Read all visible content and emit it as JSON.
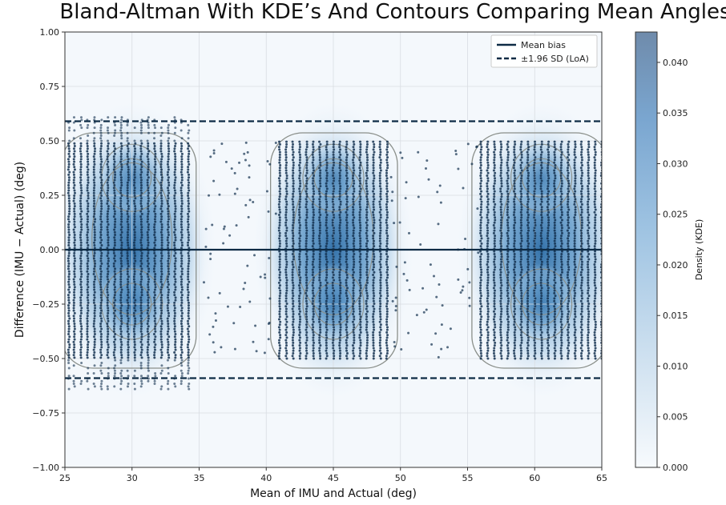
{
  "chart_data": {
    "type": "scatter",
    "title": "Bland-Altman With KDE’s And Contours Comparing Mean Angles",
    "xlabel": "Mean of IMU and Actual (deg)",
    "ylabel": "Difference (IMU − Actual) (deg)",
    "xlim": [
      25,
      65
    ],
    "ylim": [
      -1.0,
      1.0
    ],
    "x_ticks": [
      "25",
      "30",
      "35",
      "40",
      "45",
      "50",
      "55",
      "60",
      "65"
    ],
    "y_ticks": [
      "−1.00",
      "−0.75",
      "−0.50",
      "−0.25",
      "0.00",
      "0.25",
      "0.50",
      "0.75",
      "1.00"
    ],
    "grid": true,
    "mean_bias": 0.0,
    "loa_upper": 0.59,
    "loa_lower": -0.59,
    "legend": {
      "position": "top-right",
      "entries": [
        {
          "label": "Mean bias",
          "style": "solid"
        },
        {
          "label": "±1.96 SD (LoA)",
          "style": "dashed"
        }
      ]
    },
    "colorbar": {
      "label": "Density (KDE)",
      "range": [
        0.0,
        0.043
      ],
      "ticks": [
        "0.000",
        "0.005",
        "0.010",
        "0.015",
        "0.020",
        "0.025",
        "0.030",
        "0.035",
        "0.040"
      ]
    },
    "clusters": [
      {
        "x_range": [
          25.2,
          34.3
        ],
        "y_range": [
          -0.7,
          0.71
        ],
        "dense_y_range": [
          -0.5,
          0.5
        ],
        "center_x": 30.0
      },
      {
        "x_range": [
          40.8,
          49.3
        ],
        "y_range": [
          -0.5,
          0.5
        ],
        "dense_y_range": [
          -0.5,
          0.5
        ],
        "center_x": 45.0
      },
      {
        "x_range": [
          55.8,
          65.0
        ],
        "y_range": [
          -0.5,
          0.5
        ],
        "dense_y_range": [
          -0.5,
          0.5
        ],
        "center_x": 60.5
      }
    ],
    "point_columns_x": [
      25.3,
      25.7,
      26.2,
      26.7,
      27.2,
      27.7,
      28.2,
      28.7,
      29.2,
      29.7,
      30.2,
      30.7,
      31.2,
      31.7,
      32.2,
      32.7,
      33.2,
      33.7,
      34.2,
      41.0,
      41.5,
      42.0,
      42.5,
      43.0,
      43.5,
      44.0,
      44.5,
      45.0,
      45.5,
      46.0,
      46.5,
      47.0,
      47.5,
      48.0,
      48.5,
      49.0,
      56.0,
      56.5,
      57.0,
      57.5,
      58.0,
      58.5,
      59.0,
      59.5,
      60.0,
      60.5,
      61.0,
      61.5,
      62.0,
      62.5,
      63.0,
      63.5,
      64.0,
      64.5,
      65.0
    ],
    "colors": {
      "points": "#13304f",
      "line": "#0d2b45",
      "kde_low": "#f4f8fc",
      "kde_high": "#2f6fa8",
      "contour": "#8a8f8a",
      "colorbar_top": "#6f8bab"
    }
  }
}
